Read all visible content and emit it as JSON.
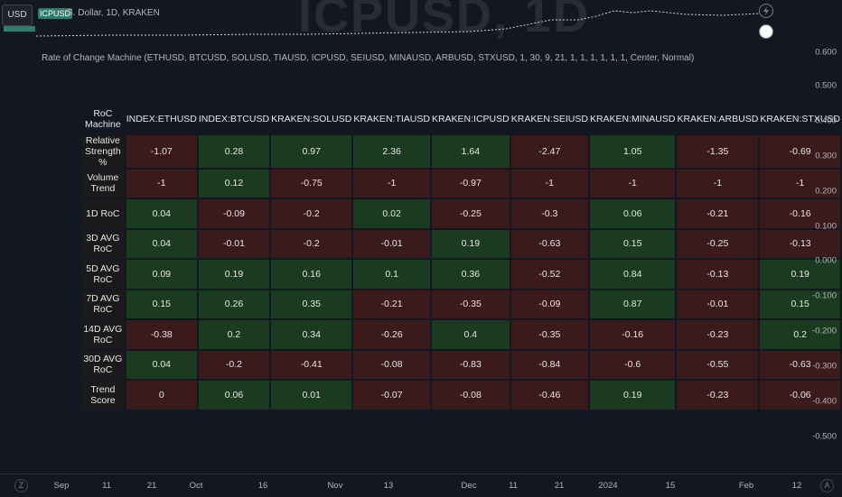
{
  "header": {
    "currency_button": "USD",
    "ticker": "ICPUSD",
    "legend": "S. Dollar, 1D, KRAKEN",
    "watermark": "ICPUSD, 1D"
  },
  "indicator": {
    "title": "Rate of Change Machine (ETHUSD, BTCUSD, SOLUSD, TIAUSD, ICPUSD, SEIUSD, MINAUSD, ARBUSD, STXUSD, 1, 30, 9, 21, 1, 1, 1, 1, 1, 1, Center, Normal)"
  },
  "table": {
    "corner": "RoC Machine",
    "columns": [
      "INDEX:ETHUSD",
      "INDEX:BTCUSD",
      "KRAKEN:SOLUSD",
      "KRAKEN:TIAUSD",
      "KRAKEN:ICPUSD",
      "KRAKEN:SEIUSD",
      "KRAKEN:MINAUSD",
      "KRAKEN:ARBUSD",
      "KRAKEN:STXUSD"
    ],
    "rows": [
      {
        "label": "Relative Strength %",
        "values": [
          "-1.07",
          "0.28",
          "0.97",
          "2.36",
          "1.64",
          "-2.47",
          "1.05",
          "-1.35",
          "-0.69"
        ],
        "signs": [
          "neg",
          "pos",
          "pos",
          "pos",
          "pos",
          "neg",
          "pos",
          "neg",
          "neg"
        ]
      },
      {
        "label": "Volume Trend",
        "values": [
          "-1",
          "0.12",
          "-0.75",
          "-1",
          "-0.97",
          "-1",
          "-1",
          "-1",
          "-1"
        ],
        "signs": [
          "neg",
          "pos",
          "neg",
          "neg",
          "neg",
          "neg",
          "neg",
          "neg",
          "neg"
        ]
      },
      {
        "label": "1D RoC",
        "values": [
          "0.04",
          "-0.09",
          "-0.2",
          "0.02",
          "-0.25",
          "-0.3",
          "0.06",
          "-0.21",
          "-0.16"
        ],
        "signs": [
          "pos",
          "neg",
          "neg",
          "pos",
          "neg",
          "neg",
          "pos",
          "neg",
          "neg"
        ]
      },
      {
        "label": "3D AVG RoC",
        "values": [
          "0.04",
          "-0.01",
          "-0.2",
          "-0.01",
          "0.19",
          "-0.63",
          "0.15",
          "-0.25",
          "-0.13"
        ],
        "signs": [
          "pos",
          "neg",
          "neg",
          "neg",
          "pos",
          "neg",
          "pos",
          "neg",
          "neg"
        ]
      },
      {
        "label": "5D AVG RoC",
        "values": [
          "0.09",
          "0.19",
          "0.16",
          "0.1",
          "0.36",
          "-0.52",
          "0.84",
          "-0.13",
          "0.19"
        ],
        "signs": [
          "pos",
          "pos",
          "pos",
          "pos",
          "pos",
          "neg",
          "pos",
          "neg",
          "pos"
        ]
      },
      {
        "label": "7D AVG RoC",
        "values": [
          "0.15",
          "0.26",
          "0.35",
          "-0.21",
          "-0.35",
          "-0.09",
          "0.87",
          "-0.01",
          "0.15"
        ],
        "signs": [
          "pos",
          "pos",
          "pos",
          "neg",
          "neg",
          "neg",
          "pos",
          "neg",
          "pos"
        ]
      },
      {
        "label": "14D AVG RoC",
        "values": [
          "-0.38",
          "0.2",
          "0.34",
          "-0.26",
          "0.4",
          "-0.35",
          "-0.16",
          "-0.23",
          "0.2"
        ],
        "signs": [
          "neg",
          "pos",
          "pos",
          "neg",
          "pos",
          "neg",
          "neg",
          "neg",
          "pos"
        ]
      },
      {
        "label": "30D AVG RoC",
        "values": [
          "0.04",
          "-0.2",
          "-0.41",
          "-0.08",
          "-0.83",
          "-0.84",
          "-0.6",
          "-0.55",
          "-0.63"
        ],
        "signs": [
          "pos",
          "neg",
          "neg",
          "neg",
          "neg",
          "neg",
          "neg",
          "neg",
          "neg"
        ]
      },
      {
        "label": "Trend Score",
        "values": [
          "0",
          "0.06",
          "0.01",
          "-0.07",
          "-0.08",
          "-0.46",
          "0.19",
          "-0.23",
          "-0.06"
        ],
        "signs": [
          "neg",
          "pos",
          "pos",
          "neg",
          "neg",
          "neg",
          "pos",
          "neg",
          "neg"
        ]
      }
    ]
  },
  "y_axis": [
    "0.600",
    "0.500",
    "0.400",
    "0.300",
    "0.200",
    "0.100",
    "0.000",
    "-0.100",
    "-0.200",
    "-0.300",
    "-0.400",
    "-0.500"
  ],
  "x_axis": [
    "Sep",
    "11",
    "21",
    "Oct",
    "16",
    "Nov",
    "13",
    "Dec",
    "11",
    "21",
    "2024",
    "15",
    "Feb",
    "12"
  ],
  "axis_corners": {
    "left": "Z",
    "right": "A"
  },
  "colors": {
    "positive": "#1b3b20",
    "negative": "#3b1a1c",
    "label_cell": "#1a1a1a",
    "background": "#131722"
  }
}
